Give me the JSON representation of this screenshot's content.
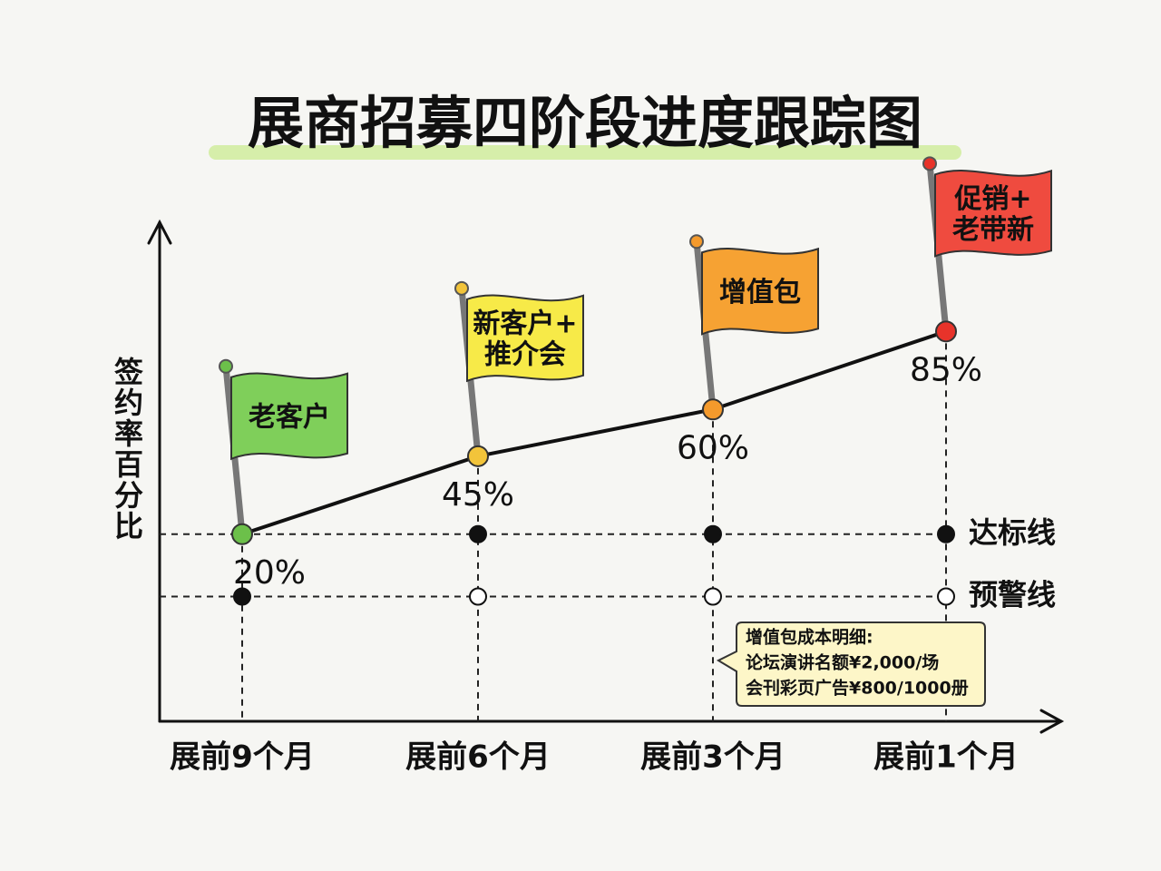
{
  "chart_data": {
    "type": "line",
    "title": "展商招募四阶段进度跟踪图",
    "y_label": "签约率百分比",
    "categories": [
      "展前9个月",
      "展前6个月",
      "展前3个月",
      "展前1个月"
    ],
    "values": [
      20,
      45,
      60,
      85
    ],
    "value_labels": [
      "20%",
      "45%",
      "60%",
      "85%"
    ],
    "color": "#111111",
    "point_colors": [
      "#6cc04a",
      "#f2c43a",
      "#f49a2c",
      "#e8332a"
    ],
    "flags": [
      [
        "老客户"
      ],
      [
        "新客户+",
        "推介会"
      ],
      [
        "增值包"
      ],
      [
        "促销+",
        "老带新"
      ]
    ],
    "flag_colors": [
      "#7fcf5a",
      "#f7ea48",
      "#f6a233",
      "#ef4b3f"
    ],
    "ylim": [
      -40,
      120
    ],
    "reference_lines": [
      {
        "label": "达标线",
        "value": 20
      },
      {
        "label": "预警线",
        "value": 0
      }
    ],
    "note": [
      "增值包成本明细:",
      "论坛演讲名额¥2,000/场",
      "会刊彩页广告¥800/1000册"
    ]
  }
}
